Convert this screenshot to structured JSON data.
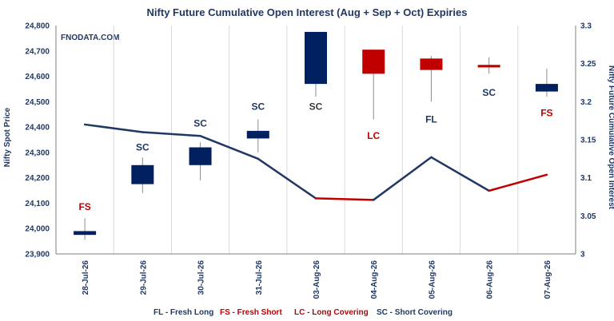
{
  "chart_data": {
    "type": "candlestick+line",
    "title": "Nifty Future Cumulative Open Interest (Aug + Sep + Oct) Expiries",
    "watermark": "FNODATA.COM",
    "ylabel": "Nifty Spot Price",
    "y2label": "Nifty Future Cumulative Open Interest",
    "ylim": [
      23900,
      24800
    ],
    "y2lim": [
      3,
      3.3
    ],
    "yticks": [
      "23,900",
      "24,000",
      "24,100",
      "24,200",
      "24,300",
      "24,400",
      "24,500",
      "24,600",
      "24,700",
      "24,800"
    ],
    "y2ticks": [
      "3",
      "3.05",
      "3.1",
      "3.15",
      "3.2",
      "3.25",
      "3.3"
    ],
    "categories": [
      "28-Jul-26",
      "29-Jul-26",
      "30-Jul-26",
      "31-Jul-26",
      "03-Aug-26",
      "04-Aug-26",
      "05-Aug-26",
      "06-Aug-26",
      "07-Aug-26"
    ],
    "candles": [
      {
        "open": 23975,
        "high": 24040,
        "low": 23955,
        "close": 23990,
        "color": "#002060"
      },
      {
        "open": 24175,
        "high": 24280,
        "low": 24140,
        "close": 24250,
        "color": "#002060"
      },
      {
        "open": 24250,
        "high": 24340,
        "low": 24190,
        "close": 24320,
        "color": "#002060"
      },
      {
        "open": 24355,
        "high": 24430,
        "low": 24300,
        "close": 24385,
        "color": "#002060"
      },
      {
        "open": 24570,
        "high": 24775,
        "low": 24520,
        "close": 24775,
        "color": "#002060"
      },
      {
        "open": 24705,
        "high": 24705,
        "low": 24430,
        "close": 24610,
        "color": "#c00000"
      },
      {
        "open": 24670,
        "high": 24680,
        "low": 24500,
        "close": 24625,
        "color": "#c00000"
      },
      {
        "open": 24645,
        "high": 24675,
        "low": 24610,
        "close": 24635,
        "color": "#c00000"
      },
      {
        "open": 24540,
        "high": 24630,
        "low": 24520,
        "close": 24570,
        "color": "#002060"
      }
    ],
    "oi_series": {
      "name": "Nifty Future Cumulative Open Interest",
      "values": [
        3.17,
        3.16,
        3.155,
        3.125,
        3.073,
        3.071,
        3.127,
        3.083,
        3.104
      ],
      "segment_colors": [
        "#1f3864",
        "#1f3864",
        "#1f3864",
        "#1f3864",
        "#c00000",
        "#1f3864",
        "#1f3864",
        "#c00000"
      ]
    },
    "annotations": [
      {
        "text": "FS",
        "color": "#c00000",
        "price": 24085
      },
      {
        "text": "SC",
        "color": "#1f3864",
        "price": 24320
      },
      {
        "text": "SC",
        "color": "#1f3864",
        "price": 24415
      },
      {
        "text": "SC",
        "color": "#1f3864",
        "price": 24480
      },
      {
        "text": "SC",
        "color": "#3a3a3a",
        "price": 24480
      },
      {
        "text": "LC",
        "color": "#c00000",
        "price": 24365
      },
      {
        "text": "FL",
        "color": "#1f3864",
        "price": 24430
      },
      {
        "text": "SC",
        "color": "#1f3864",
        "price": 24535
      },
      {
        "text": "FS",
        "color": "#c00000",
        "price": 24455
      }
    ],
    "legend": [
      {
        "key": "FL",
        "label": "FL - Fresh Long",
        "color": "#1f3864"
      },
      {
        "key": "FS",
        "label": "FS - Fresh Short",
        "color": "#c00000"
      },
      {
        "key": "LC",
        "label": "LC - Long Covering",
        "color": "#c00000"
      },
      {
        "key": "SC",
        "label": "SC - Short Covering",
        "color": "#1f3864"
      }
    ],
    "grid": "vertical-category-lines",
    "legend_position": "bottom"
  }
}
